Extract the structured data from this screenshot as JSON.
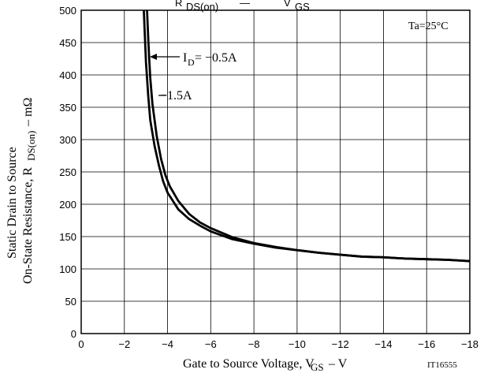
{
  "chart_data": {
    "type": "line",
    "title": "RDS(on) — VGS",
    "xlabel": "Gate to Source Voltage, VGS – V",
    "ylabel_line1": "Static Drain to Source",
    "ylabel_line2": "On-State Resistance, RDS(on) – mΩ",
    "xlim": [
      0,
      -18
    ],
    "ylim": [
      0,
      500
    ],
    "x_ticks": [
      "0",
      "−2",
      "−4",
      "−6",
      "−8",
      "−10",
      "−12",
      "−14",
      "−16",
      "−18"
    ],
    "y_ticks": [
      "0",
      "50",
      "100",
      "150",
      "200",
      "250",
      "300",
      "350",
      "400",
      "450",
      "500"
    ],
    "grid": true,
    "annotations": {
      "condition": "Ta=25°C",
      "series_a_label": "ID= −0.5A",
      "series_b_label": "−1.5A",
      "figure_id": "IT16555"
    },
    "series": [
      {
        "name": "ID= −0.5A",
        "x": [
          -2.9,
          -2.95,
          -3.0,
          -3.1,
          -3.2,
          -3.4,
          -3.6,
          -3.8,
          -4.0,
          -4.5,
          -5.0,
          -5.5,
          -6.0,
          -7.0,
          -8.0,
          -9.0,
          -10.0,
          -11.0,
          -12.0,
          -13.0,
          -14.0,
          -15.0,
          -16.0,
          -17.0,
          -18.0
        ],
        "y": [
          500,
          460,
          420,
          370,
          330,
          290,
          260,
          235,
          218,
          192,
          177,
          167,
          158,
          146,
          139,
          133,
          129,
          125,
          122,
          119,
          118,
          116,
          115,
          114,
          112
        ]
      },
      {
        "name": "−1.5A",
        "x": [
          -3.05,
          -3.1,
          -3.15,
          -3.2,
          -3.3,
          -3.5,
          -3.7,
          -3.9,
          -4.1,
          -4.5,
          -5.0,
          -5.5,
          -6.0,
          -7.0,
          -8.0,
          -9.0,
          -10.0,
          -11.0,
          -12.0,
          -13.0,
          -14.0,
          -15.0,
          -16.0,
          -17.0,
          -18.0
        ],
        "y": [
          500,
          460,
          425,
          395,
          355,
          305,
          270,
          245,
          228,
          205,
          185,
          172,
          163,
          149,
          140,
          134,
          129,
          125,
          122,
          119,
          118,
          116,
          115,
          114,
          112
        ]
      }
    ]
  }
}
